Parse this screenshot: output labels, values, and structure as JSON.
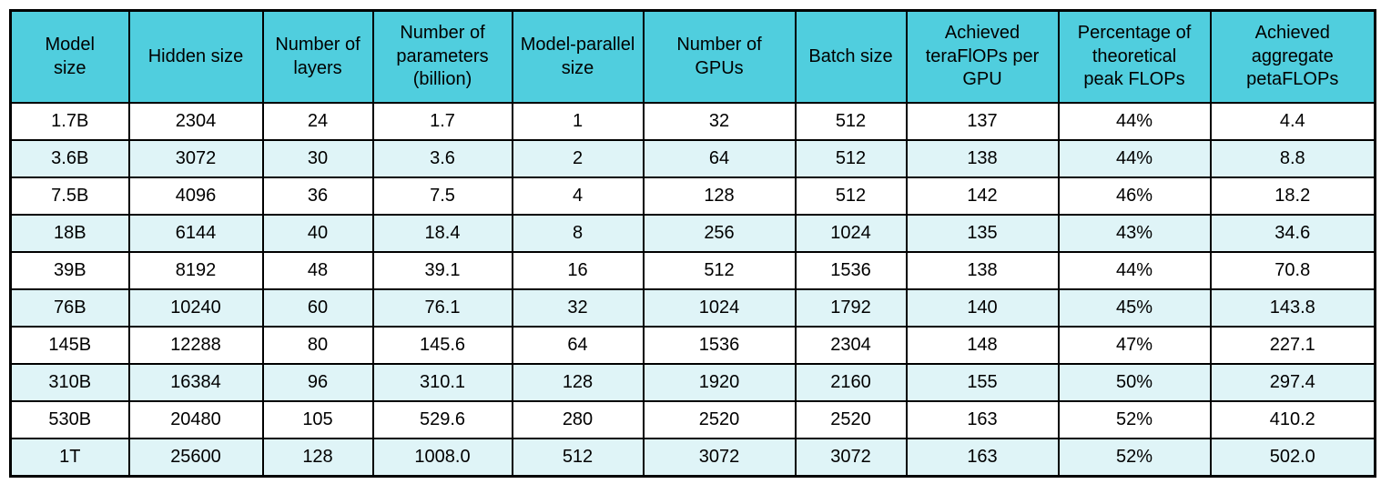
{
  "chart_data": {
    "type": "table",
    "columns": [
      "Model size",
      "Hidden size",
      "Number of layers",
      "Number of parameters (billion)",
      "Model-parallel size",
      "Number of GPUs",
      "Batch size",
      "Achieved teraFlOPs per GPU",
      "Percentage of theoretical peak FLOPs",
      "Achieved aggregate petaFLOPs"
    ],
    "header_display_lines": [
      "Model\nsize",
      "Hidden size",
      "Number of\nlayers",
      "Number of\nparameters\n(billion)",
      "Model-parallel\nsize",
      "Number of\nGPUs",
      "Batch size",
      "Achieved\nteraFlOPs per\nGPU",
      "Percentage of\ntheoretical\npeak FLOPs",
      "Achieved\naggregate\npetaFLOPs"
    ],
    "rows": [
      [
        "1.7B",
        "2304",
        "24",
        "1.7",
        "1",
        "32",
        "512",
        "137",
        "44%",
        "4.4"
      ],
      [
        "3.6B",
        "3072",
        "30",
        "3.6",
        "2",
        "64",
        "512",
        "138",
        "44%",
        "8.8"
      ],
      [
        "7.5B",
        "4096",
        "36",
        "7.5",
        "4",
        "128",
        "512",
        "142",
        "46%",
        "18.2"
      ],
      [
        "18B",
        "6144",
        "40",
        "18.4",
        "8",
        "256",
        "1024",
        "135",
        "43%",
        "34.6"
      ],
      [
        "39B",
        "8192",
        "48",
        "39.1",
        "16",
        "512",
        "1536",
        "138",
        "44%",
        "70.8"
      ],
      [
        "76B",
        "10240",
        "60",
        "76.1",
        "32",
        "1024",
        "1792",
        "140",
        "45%",
        "143.8"
      ],
      [
        "145B",
        "12288",
        "80",
        "145.6",
        "64",
        "1536",
        "2304",
        "148",
        "47%",
        "227.1"
      ],
      [
        "310B",
        "16384",
        "96",
        "310.1",
        "128",
        "1920",
        "2160",
        "155",
        "50%",
        "297.4"
      ],
      [
        "530B",
        "20480",
        "105",
        "529.6",
        "280",
        "2520",
        "2520",
        "163",
        "52%",
        "410.2"
      ],
      [
        "1T",
        "25600",
        "128",
        "1008.0",
        "512",
        "3072",
        "3072",
        "163",
        "52%",
        "502.0"
      ]
    ]
  },
  "style": {
    "header_bg": "#50CEDE",
    "row_bg": "#FFFFFF",
    "row_alt_bg": "#DFF4F7",
    "border_color": "#000000",
    "text_color": "#000000"
  }
}
